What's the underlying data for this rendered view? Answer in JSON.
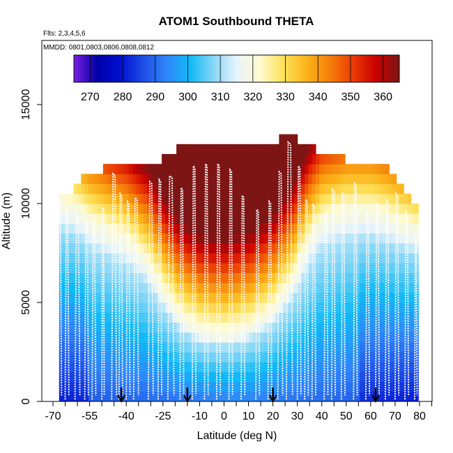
{
  "chart_data": {
    "type": "heatmap",
    "title": "ATOM1 Southbound THETA",
    "annotations": [
      "Flts: 2,3,4,5,6",
      "MMDD: 0801,0803,0806,0808,0812"
    ],
    "xlabel": "Latitude (deg N)",
    "ylabel": "Altitude (m)",
    "xlim": [
      -70,
      85
    ],
    "ylim": [
      0,
      17500
    ],
    "x_ticks": [
      -70,
      -55,
      -40,
      -25,
      -10,
      0,
      10,
      20,
      30,
      40,
      50,
      60,
      70,
      80
    ],
    "x_minor_ticks": [
      -65,
      -60,
      -50,
      -45,
      -35,
      -30,
      -20,
      -15,
      -5,
      5,
      15,
      25,
      35,
      45,
      55,
      65,
      75,
      85
    ],
    "y_ticks": [
      0,
      5000,
      10000,
      15000
    ],
    "colorbar": {
      "range": [
        265,
        365
      ],
      "ticks": [
        270,
        280,
        290,
        300,
        310,
        320,
        330,
        340,
        350,
        360
      ]
    },
    "arrows_lat": [
      -42,
      -15,
      20,
      62
    ],
    "data_extent_lat": [
      -67.5,
      79.5
    ],
    "top_profile": [
      [
        -67.5,
        10500
      ],
      [
        -62,
        10500
      ],
      [
        -59,
        11000
      ],
      [
        -54,
        11500
      ],
      [
        -49,
        11500
      ],
      [
        -39,
        12000
      ],
      [
        -25,
        12000
      ],
      [
        -19,
        12500
      ],
      [
        0,
        13000
      ],
      [
        14,
        13000
      ],
      [
        23,
        13000
      ],
      [
        26,
        13500
      ],
      [
        30,
        13000
      ],
      [
        38,
        12500
      ],
      [
        45,
        12500
      ],
      [
        49,
        12000
      ],
      [
        61,
        12000
      ],
      [
        68,
        11500
      ],
      [
        71,
        11000
      ],
      [
        73,
        10500
      ],
      [
        76,
        10000
      ],
      [
        79.5,
        9500
      ]
    ],
    "tropopause": [
      [
        -67.5,
        10000
      ],
      [
        -60,
        9600
      ],
      [
        -55,
        9000
      ],
      [
        -48,
        8500
      ],
      [
        -40,
        8000
      ],
      [
        -32,
        7000
      ],
      [
        -25,
        5500
      ],
      [
        -18,
        4200
      ],
      [
        -10,
        3500
      ],
      [
        0,
        3300
      ],
      [
        10,
        3600
      ],
      [
        20,
        4500
      ],
      [
        28,
        6000
      ],
      [
        35,
        8000
      ],
      [
        40,
        9000
      ],
      [
        50,
        9500
      ],
      [
        60,
        9500
      ],
      [
        70,
        9000
      ],
      [
        79.5,
        8500
      ]
    ],
    "flight_tracks": [
      {
        "lat": [
          -68,
          -66.5
        ],
        "top": 10200
      },
      {
        "lat": [
          -65,
          -63.5
        ],
        "top": 9600
      },
      {
        "lat": [
          -61,
          -59
        ],
        "top": 9400
      },
      {
        "lat": [
          -57,
          -55.5
        ],
        "top": 9100
      },
      {
        "lat": [
          -54,
          -52.5
        ],
        "top": 9200
      },
      {
        "lat": [
          -50,
          -49
        ],
        "top": 9800
      },
      {
        "lat": [
          -46,
          -44
        ],
        "top": 11500
      },
      {
        "lat": [
          -43,
          -41.5
        ],
        "top": 10500
      },
      {
        "lat": [
          -40,
          -38.5
        ],
        "top": 10100
      },
      {
        "lat": [
          -37,
          -35
        ],
        "top": 10300
      },
      {
        "lat": [
          -31,
          -29
        ],
        "top": 11100
      },
      {
        "lat": [
          -27,
          -25.5
        ],
        "top": 11200
      },
      {
        "lat": [
          -23,
          -20.5
        ],
        "top": 11400
      },
      {
        "lat": [
          -18,
          -16.5
        ],
        "top": 10800
      },
      {
        "lat": [
          -13,
          -11.5
        ],
        "top": 11900
      },
      {
        "lat": [
          -8,
          -6.5
        ],
        "top": 12000
      },
      {
        "lat": [
          -3,
          -1.5
        ],
        "top": 12000
      },
      {
        "lat": [
          2,
          3.5
        ],
        "top": 11700
      },
      {
        "lat": [
          7,
          8.5
        ],
        "top": 10400
      },
      {
        "lat": [
          13,
          14.5
        ],
        "top": 9700
      },
      {
        "lat": [
          18,
          19.5
        ],
        "top": 10100
      },
      {
        "lat": [
          22,
          24
        ],
        "top": 11600
      },
      {
        "lat": [
          25.5,
          28
        ],
        "top": 13100
      },
      {
        "lat": [
          30,
          31.5
        ],
        "top": 11900
      },
      {
        "lat": [
          33,
          34.5
        ],
        "top": 10200
      },
      {
        "lat": [
          36,
          37.5
        ],
        "top": 9900
      },
      {
        "lat": [
          41,
          42.5
        ],
        "top": 9600
      },
      {
        "lat": [
          44,
          45.5
        ],
        "top": 10700
      },
      {
        "lat": [
          48,
          49.5
        ],
        "top": 10500
      },
      {
        "lat": [
          53,
          54.5
        ],
        "top": 11000
      },
      {
        "lat": [
          58,
          59.5
        ],
        "top": 9500
      },
      {
        "lat": [
          62,
          63.5
        ],
        "top": 10000
      },
      {
        "lat": [
          66,
          67.5
        ],
        "top": 10200
      },
      {
        "lat": [
          70,
          71.5
        ],
        "top": 10500
      },
      {
        "lat": [
          74,
          75.5
        ],
        "top": 9600
      },
      {
        "lat": [
          78,
          79
        ],
        "top": 8400
      }
    ],
    "colors": {
      "colormap": [
        "#7a1fe0",
        "#0000a8",
        "#0010d0",
        "#1e4de6",
        "#2f86f8",
        "#10baf6",
        "#86d6f6",
        "#e8f4fb",
        "#fffbd0",
        "#fde15a",
        "#fbb41a",
        "#f57f0a",
        "#ea3b05",
        "#c90000",
        "#7d1515"
      ],
      "track": "#ffffff",
      "axis": "#000000",
      "arrow": "#000000"
    }
  }
}
